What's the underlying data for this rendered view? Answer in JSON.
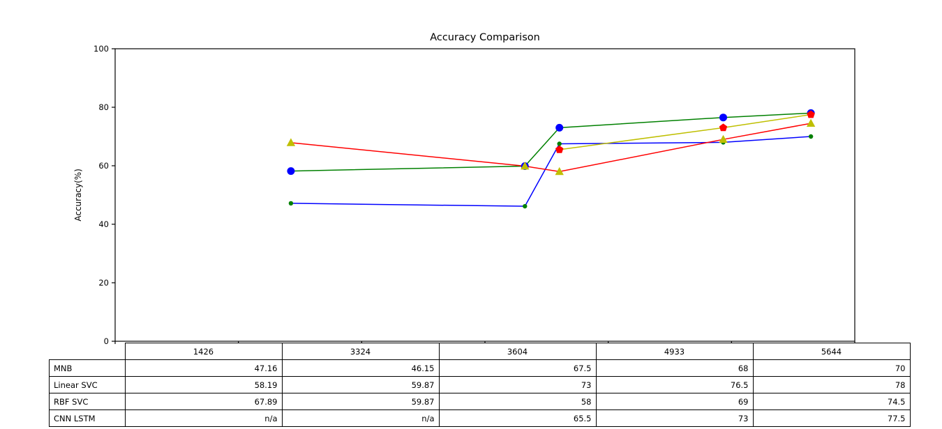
{
  "chart": {
    "title": "Accuracy Comparison",
    "ylabel": "Accuracy(%)"
  },
  "chart_data": {
    "type": "line",
    "title": "Accuracy Comparison",
    "xlabel": "",
    "ylabel": "Accuracy(%)",
    "x": [
      1426,
      3324,
      3604,
      4933,
      5644
    ],
    "xlim": [
      0,
      6000
    ],
    "ylim": [
      0,
      100
    ],
    "xticks": [
      0,
      1000,
      2000,
      3000,
      4000,
      5000,
      6000
    ],
    "yticks": [
      0,
      20,
      40,
      60,
      80,
      100
    ],
    "ytick_labels": [
      "0",
      "20",
      "40",
      "60",
      "80",
      "100"
    ],
    "grid": false,
    "legend_position": "table-below-axes",
    "series": [
      {
        "name": "MNB",
        "values": [
          47.16,
          46.15,
          67.5,
          68,
          70
        ],
        "line_color": "#0000ff",
        "marker": "dot",
        "marker_color": "#008000"
      },
      {
        "name": "Linear SVC",
        "values": [
          58.19,
          59.87,
          73,
          76.5,
          78
        ],
        "line_color": "#008000",
        "marker": "circle",
        "marker_color": "#0000ff"
      },
      {
        "name": "RBF SVC",
        "values": [
          67.89,
          59.87,
          58,
          69,
          74.5
        ],
        "line_color": "#ff0000",
        "marker": "triangle",
        "marker_color": "#bfbf00"
      },
      {
        "name": "CNN LSTM",
        "values": [
          null,
          null,
          65.5,
          73,
          77.5
        ],
        "line_color": "#bfbf00",
        "marker": "pentagon",
        "marker_color": "#ff0000"
      }
    ],
    "table": {
      "col_headers": [
        "1426",
        "3324",
        "3604",
        "4933",
        "5644"
      ],
      "row_headers": [
        "MNB",
        "Linear SVC",
        "RBF SVC",
        "CNN LSTM"
      ],
      "cells": [
        [
          "47.16",
          "46.15",
          "67.5",
          "68",
          "70"
        ],
        [
          "58.19",
          "59.87",
          "73",
          "76.5",
          "78"
        ],
        [
          "67.89",
          "59.87",
          "58",
          "69",
          "74.5"
        ],
        [
          "n/a",
          "n/a",
          "65.5",
          "73",
          "77.5"
        ]
      ]
    },
    "colors": {
      "axes": "#000000",
      "text": "#000000",
      "background": "#ffffff"
    }
  }
}
